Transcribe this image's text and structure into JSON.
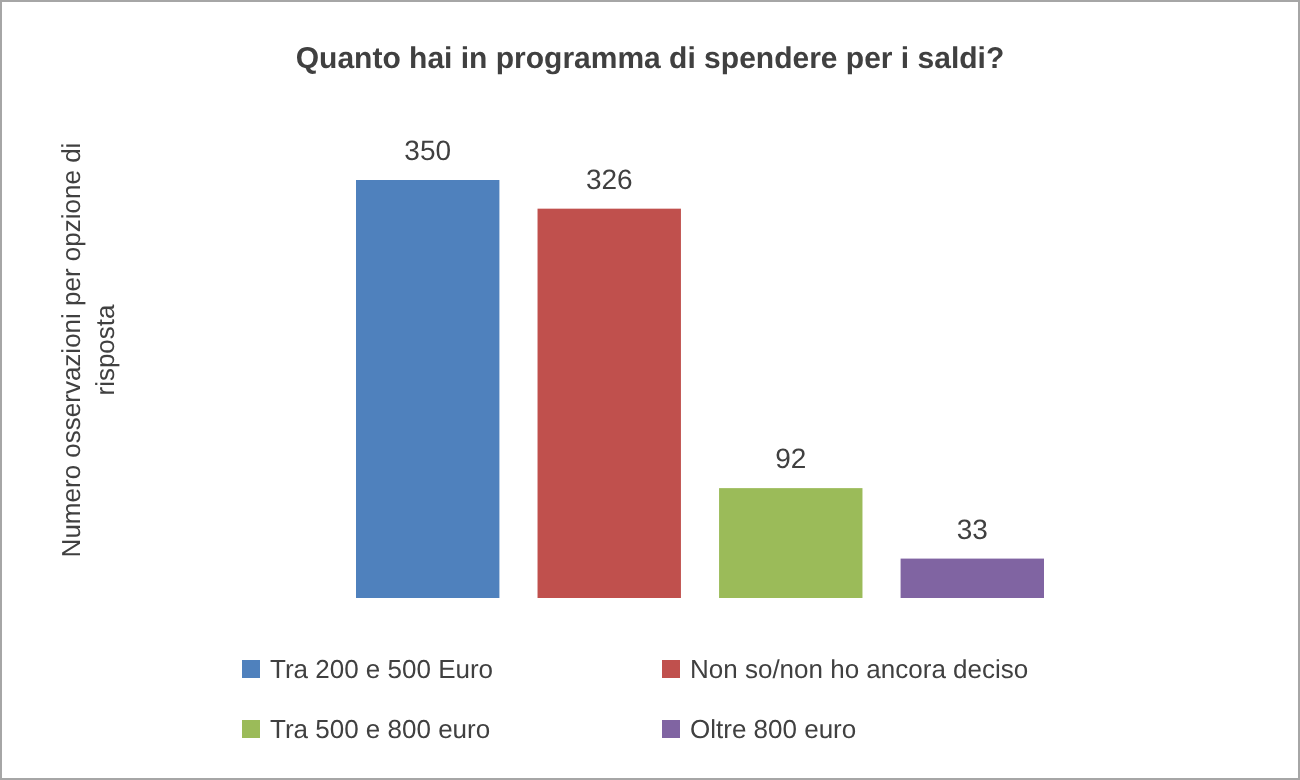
{
  "chart_data": {
    "type": "bar",
    "title": "Quanto hai in  programma di spendere per i saldi?",
    "annotations": [
      "Numero osservazioni per opzione di risposta"
    ],
    "categories": [
      null
    ],
    "data_labels": true,
    "legend": "bottom",
    "series": [
      {
        "name": "Tra 200 e 500 Euro",
        "color": "#4f81bd",
        "values": [
          350
        ]
      },
      {
        "name": "Non so/non ho ancora deciso",
        "color": "#c0504d",
        "values": [
          326
        ]
      },
      {
        "name": "Tra 500 e 800 euro",
        "color": "#9bbb59",
        "values": [
          92
        ]
      },
      {
        "name": "Oltre 800 euro",
        "color": "#8064a2",
        "values": [
          33
        ]
      }
    ]
  }
}
